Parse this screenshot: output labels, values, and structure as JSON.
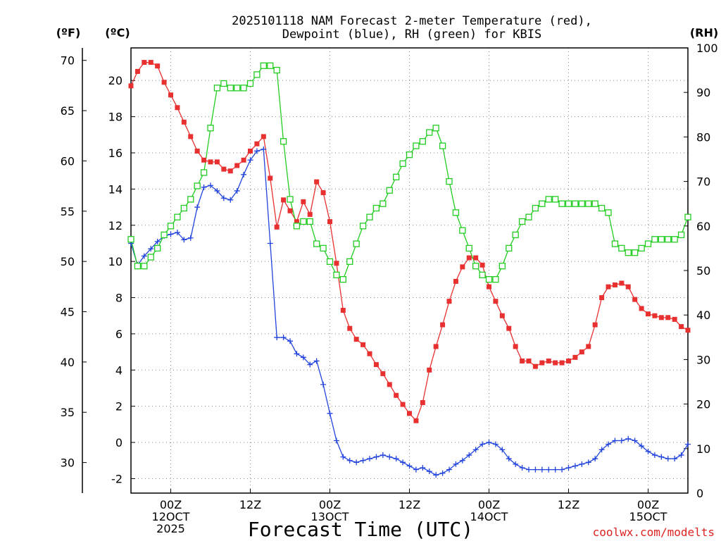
{
  "chart_data": {
    "type": "line",
    "title": [
      "2025101118 NAM Forecast 2-meter Temperature (red),",
      "Dewpoint (blue), RH (green) for KBIS"
    ],
    "xlabel": "Forecast Time (UTC)",
    "credit": "coolwx.com/modelts",
    "units": {
      "left_outer": "(ºF)",
      "left_inner": "(ºC)",
      "right": "(RH)"
    },
    "x_unit": "hours after 2025-10-11 18Z",
    "xlim": [
      0,
      84
    ],
    "ylim_c": [
      -2.8,
      21.8
    ],
    "ylim_rh": [
      0,
      100
    ],
    "x_ticks": [
      {
        "x": 6,
        "lines": [
          "00Z",
          "12OCT",
          "2025"
        ]
      },
      {
        "x": 18,
        "lines": [
          "12Z"
        ]
      },
      {
        "x": 30,
        "lines": [
          "00Z",
          "13OCT"
        ]
      },
      {
        "x": 42,
        "lines": [
          "12Z"
        ]
      },
      {
        "x": 54,
        "lines": [
          "00Z",
          "14OCT"
        ]
      },
      {
        "x": 66,
        "lines": [
          "12Z"
        ]
      },
      {
        "x": 78,
        "lines": [
          "00Z",
          "15OCT"
        ]
      }
    ],
    "c_ticks": [
      "-2",
      "0",
      "2",
      "4",
      "6",
      "8",
      "10",
      "12",
      "14",
      "16",
      "18",
      "20"
    ],
    "f_ticks": [
      "30",
      "35",
      "40",
      "45",
      "50",
      "55",
      "60",
      "65",
      "70"
    ],
    "rh_ticks": [
      "0",
      "10",
      "20",
      "30",
      "40",
      "50",
      "60",
      "70",
      "80",
      "90",
      "100"
    ],
    "series": [
      {
        "name": "Temperature",
        "color": "#e83030",
        "marker": "filled-square",
        "unit": "C",
        "x": [
          0,
          1,
          2,
          3,
          4,
          5,
          6,
          7,
          8,
          9,
          10,
          11,
          12,
          13,
          14,
          15,
          16,
          17,
          18,
          19,
          20,
          21,
          22,
          23,
          24,
          25,
          26,
          27,
          28,
          29,
          30,
          31,
          32,
          33,
          34,
          35,
          36,
          37,
          38,
          39,
          40,
          41,
          42,
          43,
          44,
          45,
          46,
          47,
          48,
          49,
          50,
          51,
          52,
          53,
          54,
          55,
          56,
          57,
          58,
          59,
          60,
          61,
          62,
          63,
          64,
          65,
          66,
          67,
          68,
          69,
          70,
          71,
          72,
          73,
          74,
          75,
          76,
          77,
          78,
          79,
          80,
          81,
          82,
          83,
          84
        ],
        "values": [
          19.7,
          20.5,
          21.0,
          21.0,
          20.8,
          19.9,
          19.2,
          18.5,
          17.7,
          16.9,
          16.1,
          15.6,
          15.5,
          15.5,
          15.1,
          15.0,
          15.3,
          15.6,
          16.1,
          16.5,
          16.9,
          14.6,
          11.9,
          13.4,
          12.8,
          12.2,
          13.3,
          12.6,
          14.4,
          13.8,
          12.2,
          9.9,
          7.3,
          6.3,
          5.7,
          5.4,
          4.9,
          4.3,
          3.8,
          3.2,
          2.6,
          2.1,
          1.6,
          1.2,
          2.2,
          4.0,
          5.3,
          6.5,
          7.8,
          8.9,
          9.7,
          10.2,
          10.2,
          9.8,
          8.6,
          7.8,
          7.0,
          6.3,
          5.3,
          4.5,
          4.5,
          4.2,
          4.4,
          4.5,
          4.4,
          4.4,
          4.5,
          4.7,
          5.0,
          5.3,
          6.5,
          8.0,
          8.6,
          8.7,
          8.8,
          8.6,
          7.9,
          7.4,
          7.1,
          7.0,
          6.9,
          6.9,
          6.8,
          6.4,
          6.2
        ]
      },
      {
        "name": "Dewpoint",
        "color": "#2244dd",
        "marker": "plus",
        "unit": "C",
        "x": [
          0,
          1,
          2,
          3,
          4,
          5,
          6,
          7,
          8,
          9,
          10,
          11,
          12,
          13,
          14,
          15,
          16,
          17,
          18,
          19,
          20,
          21,
          22,
          23,
          24,
          25,
          26,
          27,
          28,
          29,
          30,
          31,
          32,
          33,
          34,
          35,
          36,
          37,
          38,
          39,
          40,
          41,
          42,
          43,
          44,
          45,
          46,
          47,
          48,
          49,
          50,
          51,
          52,
          53,
          54,
          55,
          56,
          57,
          58,
          59,
          60,
          61,
          62,
          63,
          64,
          65,
          66,
          67,
          68,
          69,
          70,
          71,
          72,
          73,
          74,
          75,
          76,
          77,
          78,
          79,
          80,
          81,
          82,
          83,
          84
        ],
        "values": [
          11.0,
          9.8,
          10.3,
          10.7,
          11.1,
          11.4,
          11.5,
          11.6,
          11.2,
          11.3,
          13.0,
          14.1,
          14.2,
          13.9,
          13.5,
          13.4,
          13.9,
          14.8,
          15.6,
          16.1,
          16.2,
          11.0,
          5.8,
          5.8,
          5.6,
          4.9,
          4.7,
          4.3,
          4.5,
          3.2,
          1.6,
          0.1,
          -0.8,
          -1.0,
          -1.1,
          -1.0,
          -0.9,
          -0.8,
          -0.7,
          -0.8,
          -0.9,
          -1.1,
          -1.3,
          -1.5,
          -1.4,
          -1.6,
          -1.8,
          -1.7,
          -1.5,
          -1.2,
          -1.0,
          -0.7,
          -0.4,
          -0.1,
          0.0,
          -0.1,
          -0.4,
          -0.9,
          -1.2,
          -1.4,
          -1.5,
          -1.5,
          -1.5,
          -1.5,
          -1.5,
          -1.5,
          -1.4,
          -1.3,
          -1.2,
          -1.1,
          -0.9,
          -0.4,
          -0.1,
          0.1,
          0.1,
          0.2,
          0.1,
          -0.2,
          -0.5,
          -0.7,
          -0.8,
          -0.9,
          -0.9,
          -0.7,
          -0.1
        ]
      },
      {
        "name": "RH",
        "color": "#22cc22",
        "marker": "open-square",
        "unit": "RH",
        "x": [
          0,
          1,
          2,
          3,
          4,
          5,
          6,
          7,
          8,
          9,
          10,
          11,
          12,
          13,
          14,
          15,
          16,
          17,
          18,
          19,
          20,
          21,
          22,
          23,
          24,
          25,
          26,
          27,
          28,
          29,
          30,
          31,
          32,
          33,
          34,
          35,
          36,
          37,
          38,
          39,
          40,
          41,
          42,
          43,
          44,
          45,
          46,
          47,
          48,
          49,
          50,
          51,
          52,
          53,
          54,
          55,
          56,
          57,
          58,
          59,
          60,
          61,
          62,
          63,
          64,
          65,
          66,
          67,
          68,
          69,
          70,
          71,
          72,
          73,
          74,
          75,
          76,
          77,
          78,
          79,
          80,
          81,
          82,
          83,
          84
        ],
        "values": [
          57,
          51,
          51,
          53,
          55,
          58,
          60,
          62,
          64,
          66,
          69,
          72,
          82,
          91,
          92,
          91,
          91,
          91,
          92,
          94,
          96,
          96,
          95,
          79,
          66,
          60,
          61,
          61,
          56,
          55,
          52,
          49,
          48,
          52,
          56,
          60,
          62,
          64,
          65,
          68,
          71,
          74,
          76,
          78,
          79,
          81,
          82,
          78,
          70,
          63,
          59,
          55,
          51,
          49,
          48,
          48,
          51,
          55,
          58,
          61,
          62,
          64,
          65,
          66,
          66,
          65,
          65,
          65,
          65,
          65,
          65,
          64,
          63,
          56,
          55,
          54,
          54,
          55,
          56,
          57,
          57,
          57,
          57,
          58,
          62
        ]
      }
    ]
  }
}
